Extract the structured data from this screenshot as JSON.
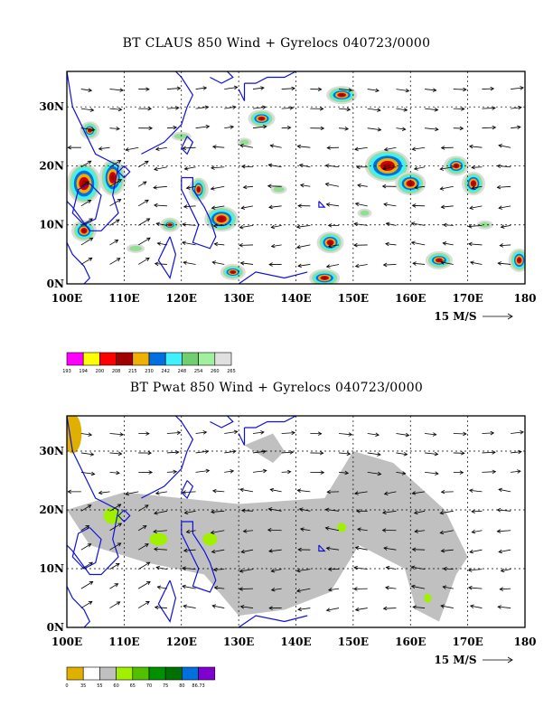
{
  "panel1": {
    "title": "BT CLAUS 850 Wind + Gyrelocs 040723/0000",
    "reference_vector": "15 M/S",
    "colorbar": {
      "colors": [
        "#ff00ff",
        "#ffff00",
        "#ff0000",
        "#a00000",
        "#f0b000",
        "#0070e0",
        "#40f0ff",
        "#70d070",
        "#a0f0a0",
        "#e0e0e0"
      ],
      "labels": [
        "193",
        "194",
        "200",
        "208",
        "215",
        "230",
        "242",
        "248",
        "254",
        "260",
        "265"
      ]
    }
  },
  "panel2": {
    "title": "BT Pwat 850 Wind + Gyrelocs 040723/0000",
    "reference_vector": "15 M/S",
    "colorbar": {
      "colors": [
        "#e0b000",
        "#ffffff",
        "#c0c0c0",
        "#a0f000",
        "#50c000",
        "#009000",
        "#007000",
        "#0070e0",
        "#8000d0"
      ],
      "labels": [
        "0",
        "35",
        "55",
        "60",
        "65",
        "70",
        "75",
        "80",
        "86.73"
      ]
    }
  },
  "axes": {
    "lon_labels": [
      "100E",
      "110E",
      "120E",
      "130E",
      "140E",
      "150E",
      "160E",
      "170E",
      "180"
    ],
    "lat_labels": [
      "0N",
      "10N",
      "20N",
      "30N"
    ]
  },
  "colors": {
    "coast": "#1010dd",
    "grid": "#000000",
    "cloud_light": "#dcdcdc",
    "cloud_green": "#90e090",
    "cloud_cyan": "#40f0ff",
    "cloud_blue": "#0070e0",
    "cloud_orange": "#f0b000",
    "cloud_red": "#d00000",
    "cloud_dark": "#a00000",
    "pwat_gray": "#c0c0c0",
    "pwat_green": "#a0f000",
    "pwat_gold": "#e0b000"
  }
}
